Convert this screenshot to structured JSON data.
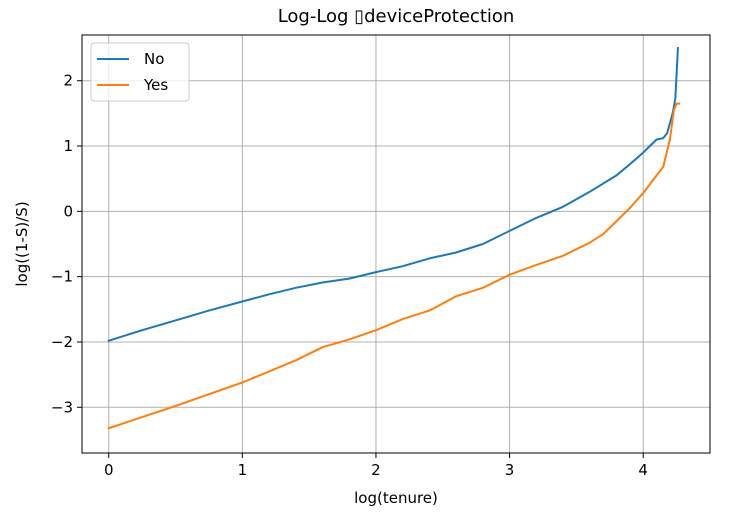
{
  "chart_data": {
    "type": "line",
    "title": "Log-Log ▯deviceProtection",
    "xlabel": "log(tenure)",
    "ylabel": "log((1-S)/S)",
    "xlim": [
      -0.2,
      4.5
    ],
    "ylim": [
      -3.7,
      2.7
    ],
    "xticks": [
      0,
      1,
      2,
      3,
      4
    ],
    "xtick_labels": [
      "0",
      "1",
      "2",
      "3",
      "4"
    ],
    "yticks": [
      -3,
      -2,
      -1,
      0,
      1,
      2
    ],
    "ytick_labels": [
      "−3",
      "−2",
      "−1",
      "0",
      "1",
      "2"
    ],
    "grid": true,
    "legend_position": "top-left",
    "series": [
      {
        "name": "No",
        "color": "#1f77b4",
        "x": [
          0,
          0.25,
          0.5,
          0.75,
          1.0,
          1.2,
          1.4,
          1.6,
          1.8,
          2.0,
          2.2,
          2.4,
          2.6,
          2.8,
          3.0,
          3.2,
          3.4,
          3.6,
          3.8,
          3.9,
          4.0,
          4.05,
          4.1,
          4.15,
          4.18,
          4.2,
          4.22,
          4.24,
          4.25,
          4.26
        ],
        "values": [
          -1.98,
          -1.82,
          -1.67,
          -1.52,
          -1.38,
          -1.27,
          -1.17,
          -1.09,
          -1.03,
          -0.93,
          -0.84,
          -0.72,
          -0.63,
          -0.5,
          -0.3,
          -0.1,
          0.07,
          0.3,
          0.55,
          0.72,
          0.9,
          1.0,
          1.1,
          1.12,
          1.2,
          1.35,
          1.5,
          1.72,
          2.1,
          2.5
        ]
      },
      {
        "name": "Yes",
        "color": "#ff7f0e",
        "x": [
          0,
          0.25,
          0.5,
          0.75,
          1.0,
          1.2,
          1.4,
          1.6,
          1.8,
          2.0,
          2.2,
          2.4,
          2.6,
          2.8,
          3.0,
          3.2,
          3.4,
          3.6,
          3.7,
          3.8,
          3.9,
          4.0,
          4.1,
          4.15,
          4.2,
          4.23,
          4.25,
          4.27
        ],
        "values": [
          -3.32,
          -3.15,
          -2.98,
          -2.8,
          -2.62,
          -2.45,
          -2.28,
          -2.08,
          -1.96,
          -1.82,
          -1.65,
          -1.52,
          -1.3,
          -1.17,
          -0.97,
          -0.82,
          -0.68,
          -0.48,
          -0.35,
          -0.15,
          0.05,
          0.28,
          0.55,
          0.68,
          1.1,
          1.55,
          1.65,
          1.65
        ]
      }
    ]
  }
}
